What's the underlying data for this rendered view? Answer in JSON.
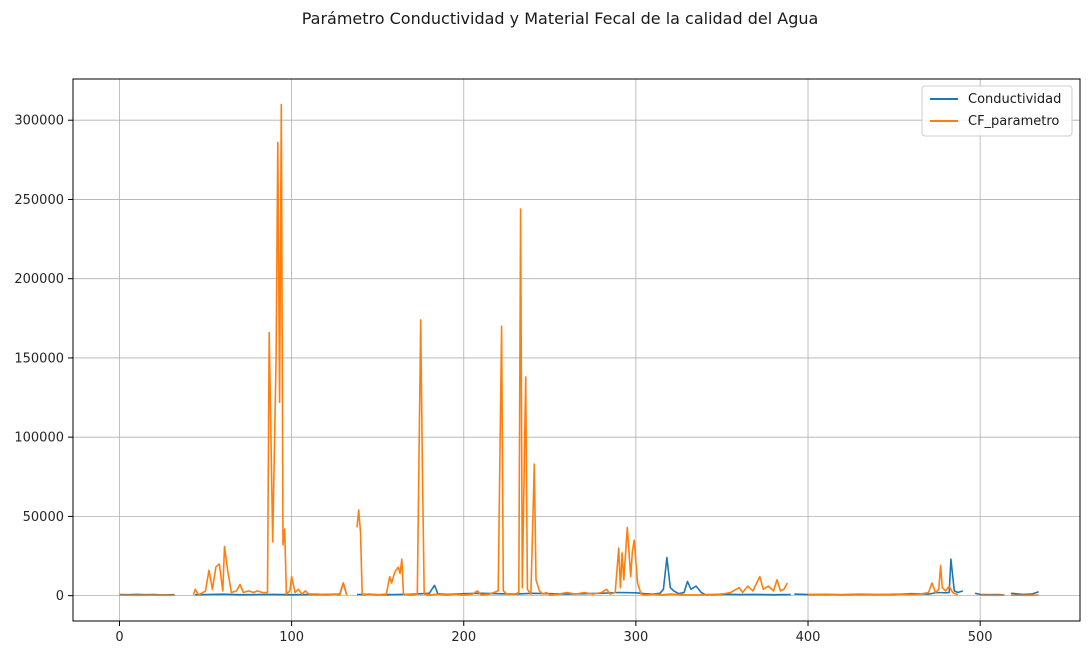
{
  "chart_data": {
    "type": "line",
    "title": "Parámetro Conductividad y Material Fecal de la calidad del Agua",
    "xlabel": "",
    "ylabel": "",
    "xlim": [
      -27,
      558
    ],
    "ylim": [
      -16000,
      326000
    ],
    "x_ticks": [
      0,
      100,
      200,
      300,
      400,
      500
    ],
    "y_ticks": [
      0,
      50000,
      100000,
      150000,
      200000,
      250000,
      300000
    ],
    "x_tick_labels": [
      "0",
      "100",
      "200",
      "300",
      "400",
      "500"
    ],
    "y_tick_labels": [
      "0",
      "50000",
      "100000",
      "150000",
      "200000",
      "250000",
      "300000"
    ],
    "grid": true,
    "legend_position": "top-right",
    "series": [
      {
        "name": "Conductividad",
        "color": "#1f77b4",
        "segments": [
          [
            [
              0,
              700
            ],
            [
              5,
              600
            ],
            [
              10,
              800
            ],
            [
              15,
              600
            ],
            [
              20,
              700
            ],
            [
              25,
              500
            ],
            [
              32,
              600
            ]
          ],
          [
            [
              44,
              600
            ],
            [
              50,
              700
            ],
            [
              60,
              900
            ],
            [
              70,
              600
            ],
            [
              80,
              700
            ],
            [
              90,
              800
            ],
            [
              100,
              600
            ],
            [
              110,
              700
            ],
            [
              120,
              800
            ],
            [
              128,
              1000
            ],
            [
              130,
              8000
            ],
            [
              132,
              600
            ]
          ],
          [
            [
              138,
              700
            ],
            [
              145,
              900
            ],
            [
              150,
              600
            ],
            [
              160,
              700
            ],
            [
              170,
              900
            ],
            [
              180,
              1500
            ],
            [
              183,
              6500
            ],
            [
              185,
              1200
            ],
            [
              190,
              800
            ],
            [
              200,
              1200
            ],
            [
              210,
              1500
            ],
            [
              220,
              1200
            ],
            [
              230,
              1000
            ],
            [
              240,
              1500
            ],
            [
              250,
              1200
            ],
            [
              260,
              1000
            ],
            [
              270,
              1200
            ],
            [
              280,
              1500
            ],
            [
              290,
              2000
            ],
            [
              300,
              1800
            ],
            [
              305,
              1200
            ],
            [
              310,
              1000
            ],
            [
              314,
              1500
            ],
            [
              316,
              4000
            ],
            [
              318,
              24000
            ],
            [
              320,
              5000
            ],
            [
              322,
              3000
            ],
            [
              325,
              1200
            ],
            [
              328,
              2000
            ],
            [
              330,
              9000
            ],
            [
              332,
              4000
            ],
            [
              335,
              6000
            ],
            [
              338,
              2000
            ],
            [
              340,
              800
            ],
            [
              345,
              600
            ],
            [
              350,
              900
            ],
            [
              360,
              700
            ],
            [
              370,
              800
            ],
            [
              380,
              600
            ],
            [
              390,
              700
            ]
          ],
          [
            [
              392,
              1000
            ],
            [
              400,
              700
            ],
            [
              410,
              800
            ],
            [
              420,
              600
            ],
            [
              430,
              900
            ],
            [
              440,
              700
            ],
            [
              450,
              800
            ],
            [
              460,
              1200
            ],
            [
              470,
              1000
            ],
            [
              475,
              2000
            ],
            [
              480,
              1800
            ],
            [
              482,
              2000
            ],
            [
              483,
              23000
            ],
            [
              485,
              3000
            ],
            [
              487,
              2000
            ],
            [
              490,
              3000
            ]
          ],
          [
            [
              497,
              1500
            ],
            [
              500,
              800
            ],
            [
              505,
              600
            ],
            [
              510,
              700
            ],
            [
              514,
              500
            ]
          ],
          [
            [
              518,
              1500
            ],
            [
              525,
              800
            ],
            [
              530,
              1000
            ],
            [
              534,
              2500
            ]
          ]
        ]
      },
      {
        "name": "CF_parametro",
        "color": "#ff7f0e",
        "segments": [
          [
            [
              0,
              300
            ],
            [
              10,
              200
            ],
            [
              20,
              300
            ],
            [
              32,
              200
            ]
          ],
          [
            [
              43,
              500
            ],
            [
              44,
              4000
            ],
            [
              46,
              500
            ],
            [
              50,
              3000
            ],
            [
              52,
              16000
            ],
            [
              54,
              4000
            ],
            [
              56,
              18000
            ],
            [
              58,
              20000
            ],
            [
              60,
              3000
            ],
            [
              61,
              31000
            ],
            [
              63,
              15000
            ],
            [
              65,
              2000
            ],
            [
              68,
              3000
            ],
            [
              70,
              7000
            ],
            [
              72,
              2000
            ],
            [
              75,
              3000
            ],
            [
              78,
              2000
            ],
            [
              80,
              3000
            ],
            [
              83,
              2000
            ],
            [
              86,
              2000
            ],
            [
              87,
              166000
            ],
            [
              89,
              34000
            ],
            [
              91,
              150000
            ],
            [
              92,
              286000
            ],
            [
              93,
              122000
            ],
            [
              94,
              310000
            ],
            [
              95,
              32000
            ],
            [
              96,
              42000
            ],
            [
              97,
              1000
            ],
            [
              99,
              3000
            ],
            [
              100,
              12000
            ],
            [
              102,
              2000
            ],
            [
              104,
              4000
            ],
            [
              106,
              1000
            ],
            [
              108,
              3000
            ],
            [
              110,
              1000
            ],
            [
              115,
              1000
            ],
            [
              120,
              500
            ],
            [
              125,
              1000
            ],
            [
              128,
              500
            ],
            [
              130,
              8000
            ],
            [
              132,
              500
            ]
          ],
          [
            [
              138,
              43000
            ],
            [
              139,
              54000
            ],
            [
              140,
              40000
            ],
            [
              141,
              500
            ],
            [
              145,
              1000
            ],
            [
              150,
              500
            ],
            [
              155,
              1000
            ],
            [
              157,
              12000
            ],
            [
              158,
              8000
            ],
            [
              160,
              15000
            ],
            [
              162,
              18000
            ],
            [
              163,
              14000
            ],
            [
              164,
              23000
            ],
            [
              165,
              1000
            ],
            [
              170,
              500
            ],
            [
              173,
              1000
            ],
            [
              175,
              174000
            ],
            [
              176,
              80000
            ],
            [
              177,
              1000
            ],
            [
              180,
              500
            ],
            [
              185,
              1000
            ],
            [
              190,
              500
            ],
            [
              195,
              1000
            ],
            [
              200,
              500
            ],
            [
              205,
              1000
            ],
            [
              208,
              3000
            ],
            [
              210,
              500
            ],
            [
              215,
              1000
            ],
            [
              220,
              3000
            ],
            [
              222,
              170000
            ],
            [
              223,
              3000
            ],
            [
              225,
              1000
            ],
            [
              230,
              1000
            ],
            [
              232,
              2000
            ],
            [
              233,
              244000
            ],
            [
              234,
              5000
            ],
            [
              236,
              138000
            ],
            [
              237,
              4000
            ],
            [
              239,
              1000
            ],
            [
              241,
              83000
            ],
            [
              242,
              10000
            ],
            [
              244,
              3000
            ],
            [
              246,
              1000
            ],
            [
              248,
              2000
            ],
            [
              250,
              500
            ],
            [
              255,
              1000
            ],
            [
              260,
              2000
            ],
            [
              265,
              1000
            ],
            [
              270,
              2000
            ],
            [
              275,
              1000
            ],
            [
              280,
              2000
            ],
            [
              283,
              4000
            ],
            [
              285,
              1000
            ],
            [
              288,
              2000
            ],
            [
              290,
              30000
            ],
            [
              291,
              5000
            ],
            [
              292,
              27000
            ],
            [
              293,
              10000
            ],
            [
              295,
              43000
            ],
            [
              297,
              12000
            ],
            [
              298,
              28000
            ],
            [
              299,
              35000
            ],
            [
              301,
              8000
            ],
            [
              303,
              1000
            ],
            [
              305,
              500
            ],
            [
              310,
              1000
            ],
            [
              315,
              500
            ],
            [
              320,
              1000
            ],
            [
              330,
              500
            ],
            [
              340,
              500
            ],
            [
              350,
              1000
            ],
            [
              355,
              2000
            ],
            [
              360,
              5000
            ],
            [
              362,
              2000
            ],
            [
              365,
              6000
            ],
            [
              368,
              3000
            ],
            [
              372,
              12000
            ],
            [
              374,
              4000
            ],
            [
              377,
              6000
            ],
            [
              380,
              3000
            ],
            [
              382,
              10000
            ],
            [
              384,
              3000
            ],
            [
              386,
              4000
            ],
            [
              388,
              8000
            ]
          ],
          [
            [
              400,
              500
            ],
            [
              410,
              700
            ],
            [
              420,
              500
            ],
            [
              430,
              800
            ],
            [
              440,
              600
            ],
            [
              450,
              1000
            ],
            [
              460,
              800
            ],
            [
              465,
              1000
            ],
            [
              470,
              2000
            ],
            [
              472,
              8000
            ],
            [
              474,
              2000
            ],
            [
              476,
              4000
            ],
            [
              477,
              19000
            ],
            [
              478,
              5000
            ],
            [
              480,
              3000
            ],
            [
              482,
              6000
            ],
            [
              484,
              2000
            ],
            [
              487,
              500
            ]
          ],
          [
            [
              500,
              300
            ],
            [
              510,
              200
            ],
            [
              514,
              300
            ]
          ],
          [
            [
              518,
              300
            ],
            [
              525,
              200
            ],
            [
              534,
              300
            ]
          ]
        ]
      }
    ]
  }
}
